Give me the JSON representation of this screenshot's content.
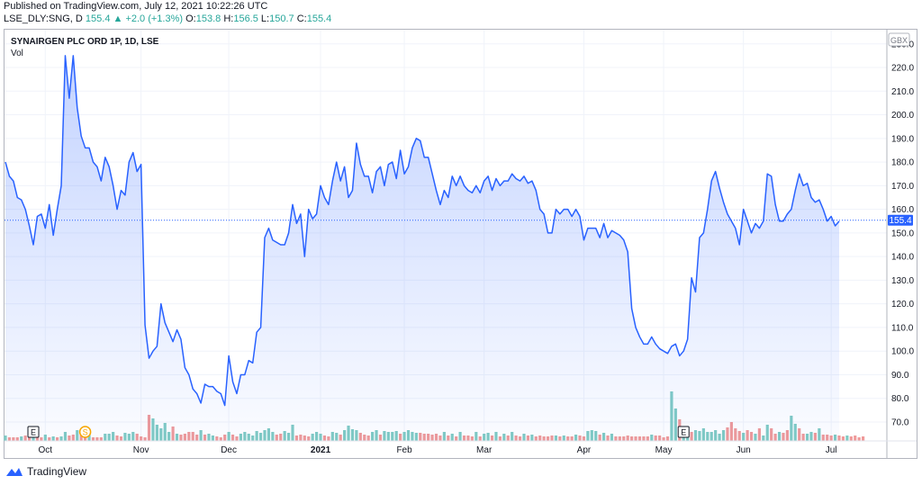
{
  "header": {
    "published": "Published on TradingView.com, July 12, 2021 10:22:26 UTC",
    "symbol": "LSE_DLY:SNG, D",
    "last": "155.4",
    "change": "+2.0 (+1.3%)",
    "open_label": "O:",
    "open": "153.8",
    "high_label": "H:",
    "high": "156.5",
    "low_label": "L:",
    "low": "150.7",
    "close_label": "C:",
    "close": "155.4"
  },
  "legend": {
    "name": "SYNAIRGEN PLC ORD 1P, 1D, LSE",
    "volume": "Vol"
  },
  "footer": {
    "brand": "TradingView"
  },
  "colors": {
    "line": "#2962ff",
    "vol_up": "#80cbc4",
    "vol_down": "#ef9a9a",
    "grid": "#f0f3fa",
    "axis_text": "#131722"
  },
  "chart_data": {
    "type": "area",
    "currency": "GBX",
    "last_price_label": "155.4",
    "ylim": [
      62,
      236
    ],
    "y_ticks": [
      70,
      80,
      90,
      100,
      110,
      120,
      130,
      140,
      150,
      160,
      170,
      180,
      190,
      200,
      210,
      220,
      230
    ],
    "x_ticks": [
      {
        "label": "Oct",
        "i": 10
      },
      {
        "label": "Nov",
        "i": 34
      },
      {
        "label": "Dec",
        "i": 56
      },
      {
        "label": "2021",
        "i": 79
      },
      {
        "label": "Feb",
        "i": 100
      },
      {
        "label": "Mar",
        "i": 120
      },
      {
        "label": "Apr",
        "i": 145
      },
      {
        "label": "May",
        "i": 165
      },
      {
        "label": "Jun",
        "i": 185
      },
      {
        "label": "Jul",
        "i": 207
      }
    ],
    "events": [
      {
        "type": "earnings",
        "label": "E",
        "i": 7
      },
      {
        "type": "dividend",
        "label": "S",
        "i": 20
      },
      {
        "type": "earnings",
        "label": "E",
        "i": 170
      }
    ],
    "close": [
      180,
      174,
      172,
      165,
      164,
      160,
      153,
      145,
      157,
      158,
      152,
      162,
      149,
      160,
      170,
      225,
      207,
      225,
      203,
      191,
      186,
      186,
      180,
      178,
      172,
      182,
      178,
      170,
      160,
      168,
      166,
      180,
      184,
      176,
      179,
      111,
      97,
      100,
      102,
      120,
      112,
      108,
      104,
      109,
      105,
      93,
      90,
      84,
      82,
      78,
      86,
      85,
      85,
      83,
      82,
      77,
      98,
      87,
      82,
      90,
      90,
      96,
      95,
      108,
      110,
      148,
      152,
      147,
      146,
      145,
      145,
      150,
      162,
      154,
      158,
      140,
      160,
      156,
      158,
      170,
      165,
      162,
      172,
      180,
      172,
      178,
      165,
      168,
      188,
      179,
      174,
      174,
      167,
      176,
      178,
      170,
      179,
      180,
      173,
      185,
      175,
      178,
      186,
      190,
      189,
      182,
      182,
      175,
      168,
      162,
      168,
      165,
      174,
      170,
      174,
      170,
      168,
      167,
      170,
      167,
      172,
      174,
      168,
      173,
      170,
      172,
      172,
      175,
      173,
      172,
      174,
      171,
      172,
      168,
      160,
      158,
      150,
      150,
      160,
      158,
      160,
      160,
      157,
      160,
      157,
      147,
      152,
      152,
      152,
      148,
      154,
      148,
      151,
      150,
      149,
      147,
      142,
      118,
      110,
      106,
      103,
      103,
      106,
      103,
      101,
      100,
      99,
      102,
      103,
      98,
      100,
      105,
      131,
      125,
      148,
      150,
      160,
      172,
      176,
      169,
      163,
      158,
      155,
      152,
      145,
      160,
      155,
      150,
      154,
      152,
      155,
      175,
      174,
      162,
      155,
      155,
      158,
      160,
      168,
      175,
      170,
      171,
      165,
      163,
      164,
      160,
      155,
      157,
      153,
      155
    ]
  },
  "volume": {
    "up": [
      1,
      0,
      0,
      0,
      1,
      0,
      0,
      1,
      0,
      0,
      1,
      0,
      1,
      0,
      1,
      1,
      0,
      0,
      1,
      0,
      0,
      1,
      0,
      0,
      0,
      1,
      1,
      1,
      0,
      0,
      1,
      1,
      1,
      0,
      0,
      0,
      0,
      1,
      1,
      1,
      1,
      1,
      0,
      1,
      0,
      0,
      0,
      0,
      0,
      1,
      0,
      1,
      1,
      0,
      0,
      0,
      1,
      0,
      0,
      1,
      1,
      1,
      1,
      1,
      1,
      1,
      1,
      1,
      0,
      0,
      1,
      1,
      1,
      0,
      0,
      0,
      0,
      1,
      1,
      1,
      0,
      0,
      1,
      1,
      0,
      1,
      1,
      1,
      1,
      0,
      0,
      0,
      1,
      1,
      0,
      1,
      1,
      1,
      1,
      0,
      1,
      1,
      1,
      1,
      0,
      0,
      0,
      0,
      0,
      0,
      1,
      0,
      1,
      0,
      1,
      0,
      0,
      0,
      1,
      0,
      1,
      1,
      0,
      1,
      0,
      1,
      0,
      1,
      0,
      0,
      1,
      0,
      1,
      0,
      0,
      0,
      0,
      0,
      1,
      0,
      1,
      0,
      0,
      1,
      0,
      0,
      1,
      1,
      1,
      0,
      1,
      0,
      1,
      0,
      0,
      0,
      0,
      0,
      0,
      0,
      0,
      0,
      1,
      0,
      0,
      0,
      0,
      1,
      1,
      0,
      1,
      1,
      0,
      1,
      1,
      1,
      1,
      1,
      1,
      1,
      1,
      0,
      0,
      0,
      0,
      1,
      0,
      0,
      1,
      0,
      1,
      1,
      0,
      0,
      1,
      0,
      0,
      1,
      1,
      0,
      0,
      1,
      1,
      0,
      1,
      0,
      0,
      0,
      1,
      0,
      0,
      1
    ],
    "height": [
      6,
      4,
      4,
      4,
      5,
      6,
      4,
      4,
      6,
      4,
      7,
      4,
      5,
      4,
      5,
      10,
      6,
      7,
      12,
      9,
      6,
      8,
      4,
      4,
      4,
      8,
      8,
      10,
      6,
      5,
      9,
      8,
      10,
      8,
      5,
      4,
      29,
      25,
      18,
      14,
      20,
      10,
      16,
      8,
      7,
      8,
      10,
      10,
      7,
      12,
      7,
      8,
      6,
      5,
      4,
      7,
      10,
      7,
      5,
      8,
      10,
      8,
      6,
      11,
      9,
      12,
      14,
      10,
      7,
      8,
      11,
      9,
      18,
      6,
      7,
      6,
      5,
      8,
      10,
      8,
      6,
      5,
      10,
      9,
      7,
      12,
      17,
      13,
      12,
      9,
      7,
      6,
      10,
      12,
      7,
      11,
      10,
      10,
      11,
      8,
      10,
      12,
      10,
      9,
      9,
      8,
      8,
      7,
      8,
      6,
      10,
      6,
      8,
      5,
      10,
      6,
      6,
      5,
      10,
      5,
      8,
      9,
      6,
      10,
      5,
      8,
      6,
      10,
      6,
      5,
      8,
      6,
      7,
      5,
      6,
      5,
      5,
      6,
      6,
      5,
      6,
      5,
      5,
      7,
      6,
      5,
      11,
      12,
      11,
      7,
      9,
      6,
      8,
      5,
      5,
      5,
      6,
      5,
      5,
      5,
      5,
      5,
      7,
      6,
      6,
      4,
      5,
      55,
      36,
      24,
      11,
      9,
      10,
      12,
      11,
      14,
      10,
      10,
      12,
      8,
      12,
      15,
      21,
      14,
      11,
      9,
      12,
      10,
      8,
      14,
      6,
      18,
      14,
      8,
      10,
      9,
      12,
      28,
      19,
      14,
      8,
      8,
      10,
      9,
      14,
      7,
      7,
      6,
      7,
      6,
      5,
      6,
      5,
      6,
      4,
      5
    ]
  }
}
